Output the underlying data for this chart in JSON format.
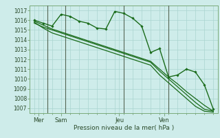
{
  "background_color": "#ceecea",
  "grid_color": "#aad4d0",
  "line_color": "#1a6b1a",
  "xlabel": "Pression niveau de la mer( hPa )",
  "ylim": [
    1006.5,
    1017.5
  ],
  "yticks": [
    1007,
    1008,
    1009,
    1010,
    1011,
    1012,
    1013,
    1014,
    1015,
    1016,
    1017
  ],
  "day_labels": [
    "Mer",
    "Sam",
    "Jeu",
    "Ven"
  ],
  "day_positions": [
    0.5,
    3.0,
    9.5,
    14.5
  ],
  "vline_positions": [
    1.5,
    3.5,
    10.0,
    15.0
  ],
  "n_points": 21,
  "series1_x": [
    0,
    1,
    2,
    3,
    4,
    5,
    6,
    7,
    8,
    9,
    10,
    11,
    12,
    13,
    14,
    15,
    16,
    17,
    18,
    19,
    20
  ],
  "series1_y": [
    1016.0,
    1015.7,
    1015.4,
    1016.6,
    1016.4,
    1015.9,
    1015.7,
    1015.2,
    1015.1,
    1016.9,
    1016.7,
    1016.2,
    1015.4,
    1012.7,
    1013.1,
    1010.2,
    1010.4,
    1011.0,
    1010.7,
    1009.4,
    1006.9
  ],
  "series2_x": [
    0,
    1,
    2,
    3,
    4,
    5,
    6,
    7,
    8,
    9,
    10,
    11,
    12,
    13,
    14,
    15,
    16,
    17,
    18,
    19,
    20
  ],
  "series2_y": [
    1015.9,
    1015.5,
    1015.1,
    1014.8,
    1014.5,
    1014.2,
    1013.9,
    1013.6,
    1013.3,
    1013.0,
    1012.7,
    1012.4,
    1012.1,
    1011.8,
    1011.0,
    1010.2,
    1009.5,
    1008.7,
    1008.0,
    1007.3,
    1006.7
  ],
  "series3_x": [
    0,
    1,
    2,
    3,
    4,
    5,
    6,
    7,
    8,
    9,
    10,
    11,
    12,
    13,
    14,
    15,
    16,
    17,
    18,
    19,
    20
  ],
  "series3_y": [
    1015.7,
    1015.3,
    1015.0,
    1014.7,
    1014.4,
    1014.1,
    1013.8,
    1013.5,
    1013.2,
    1012.9,
    1012.6,
    1012.3,
    1012.0,
    1011.7,
    1010.8,
    1010.0,
    1009.2,
    1008.4,
    1007.6,
    1006.9,
    1006.7
  ],
  "series4_x": [
    0,
    1,
    2,
    3,
    4,
    5,
    6,
    7,
    8,
    9,
    10,
    11,
    12,
    13,
    14,
    15,
    16,
    17,
    18,
    19,
    20
  ],
  "series4_y": [
    1015.8,
    1015.2,
    1014.7,
    1014.4,
    1014.1,
    1013.8,
    1013.5,
    1013.2,
    1012.9,
    1012.6,
    1012.3,
    1012.0,
    1011.7,
    1011.4,
    1010.4,
    1009.6,
    1008.8,
    1008.0,
    1007.2,
    1006.7,
    1006.6
  ]
}
